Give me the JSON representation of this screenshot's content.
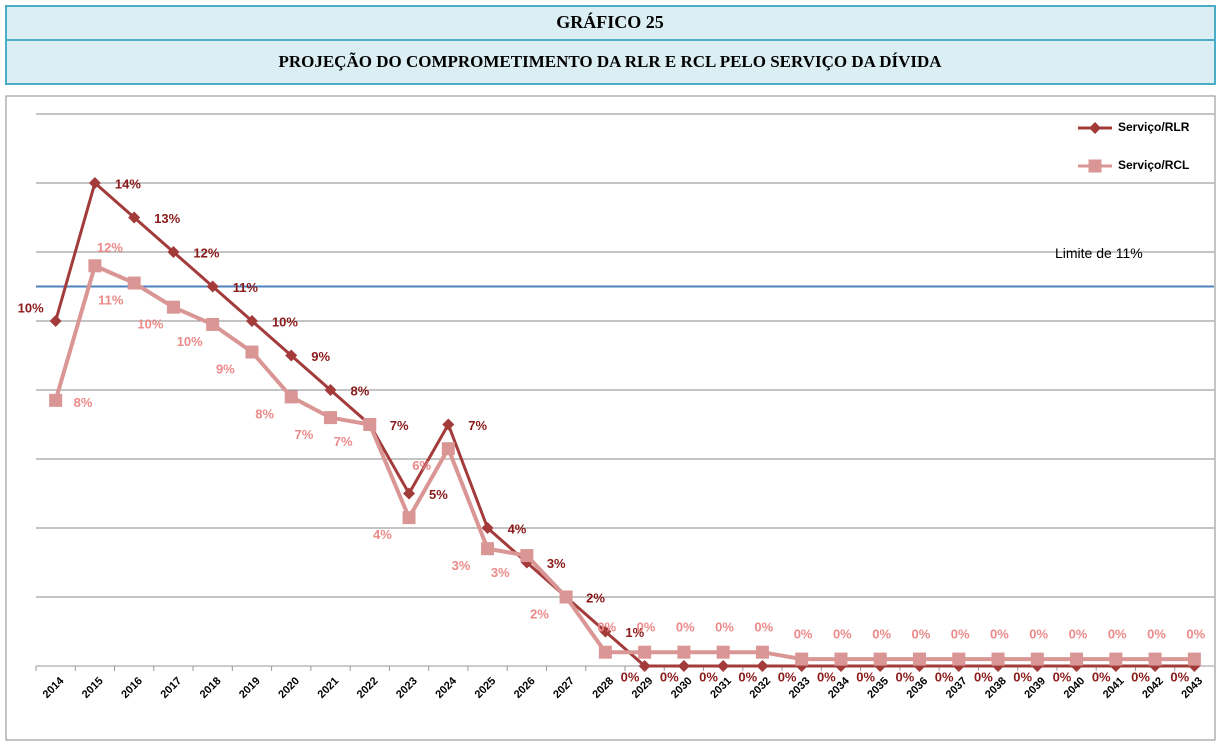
{
  "header": {
    "title": "GRÁFICO 25",
    "subtitle": "PROJEÇÃO DO COMPROMETIMENTO DA RLR E RCL PELO SERVIÇO DA DÍVIDA"
  },
  "chart_data": {
    "type": "line",
    "categories": [
      "2014",
      "2015",
      "2016",
      "2017",
      "2018",
      "2019",
      "2020",
      "2021",
      "2022",
      "2023",
      "2024",
      "2025",
      "2026",
      "2027",
      "2028",
      "2029",
      "2030",
      "2031",
      "2032",
      "2033",
      "2034",
      "2035",
      "2036",
      "2037",
      "2038",
      "2039",
      "2040",
      "2041",
      "2042",
      "2043"
    ],
    "series": [
      {
        "name": "Serviço/RLR",
        "color": "#a33b3b",
        "label_color": "#8b1a1a",
        "marker": "diamond",
        "values": [
          10,
          14,
          13,
          12,
          11,
          10,
          9,
          8,
          7,
          5,
          7,
          4,
          3,
          2,
          1,
          0,
          0,
          0,
          0,
          0,
          0,
          0,
          0,
          0,
          0,
          0,
          0,
          0,
          0,
          0
        ],
        "value_labels": [
          "10%",
          "14%",
          "13%",
          "12%",
          "11%",
          "10%",
          "9%",
          "8%",
          "7%",
          "5%",
          "7%",
          "4%",
          "3%",
          "2%",
          "1%",
          "0%",
          "0%",
          "0%",
          "0%",
          "0%",
          "0%",
          "0%",
          "0%",
          "0%",
          "0%",
          "0%",
          "0%",
          "0%",
          "0%",
          "0%"
        ]
      },
      {
        "name": "Serviço/RCL",
        "color": "#d99694",
        "label_color": "#ec8a8a",
        "marker": "square",
        "values": [
          7.7,
          11.6,
          11.1,
          10.4,
          9.9,
          9.1,
          7.8,
          7.2,
          7.0,
          4.3,
          6.3,
          3.4,
          3.2,
          2.0,
          0.4,
          0.4,
          0.4,
          0.4,
          0.4,
          0.2,
          0.2,
          0.2,
          0.2,
          0.2,
          0.2,
          0.2,
          0.2,
          0.2,
          0.2,
          0.2
        ],
        "value_labels": [
          "8%",
          "12%",
          "11%",
          "10%",
          "10%",
          "9%",
          "8%",
          "7%",
          "7%",
          "4%",
          "6%",
          "3%",
          "3%",
          "2%",
          "0%",
          "0%",
          "0%",
          "0%",
          "0%",
          "0%",
          "0%",
          "0%",
          "0%",
          "0%",
          "0%",
          "0%",
          "0%",
          "0%",
          "0%",
          "0%"
        ]
      }
    ],
    "limit": {
      "value": 11,
      "label": "Limite de 11%",
      "color": "#4f81bd"
    },
    "ylim": [
      0,
      16
    ],
    "yticks": [
      0,
      2,
      4,
      6,
      8,
      10,
      12,
      14,
      16
    ],
    "grid": true,
    "legend": "top-right"
  }
}
